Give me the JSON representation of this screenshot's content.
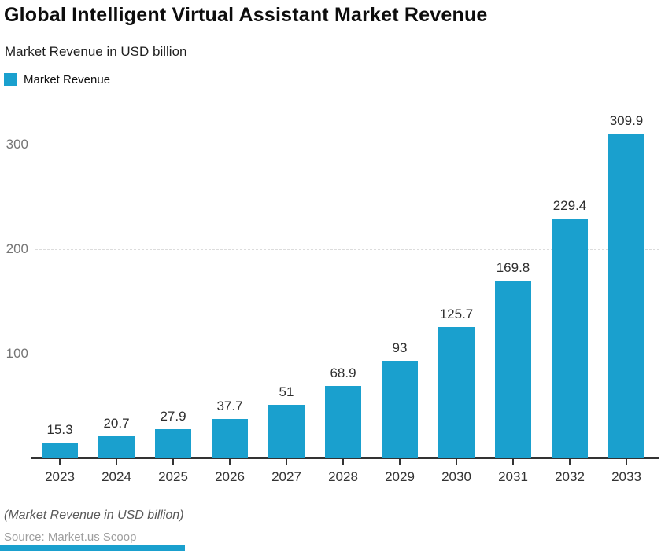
{
  "header": {
    "title": "Global Intelligent Virtual Assistant Market Revenue",
    "subtitle": "Market Revenue in USD billion"
  },
  "chart_data": {
    "type": "bar",
    "title": "Global Intelligent Virtual Assistant Market Revenue",
    "subtitle": "Market Revenue in USD billion",
    "categories": [
      "2023",
      "2024",
      "2025",
      "2026",
      "2027",
      "2028",
      "2029",
      "2030",
      "2031",
      "2032",
      "2033"
    ],
    "values": [
      15.3,
      20.7,
      27.9,
      37.7,
      51,
      68.9,
      93,
      125.7,
      169.8,
      229.4,
      309.9
    ],
    "xlabel": "",
    "ylabel": "",
    "ylim": [
      0,
      340
    ],
    "yticks": [
      100,
      200,
      300
    ],
    "grid": true,
    "value_labels": true,
    "bar_color": "#1AA0CE",
    "legend": {
      "position": "top-left",
      "entries": [
        "Market Revenue"
      ]
    }
  },
  "footer": {
    "note": "(Market Revenue in USD billion)",
    "source": "Source: Market.us Scoop"
  },
  "colors": {
    "accent": "#1AA0CE",
    "axis": "#333333",
    "grid": "#DCDCDC",
    "value_label": "#2E2E2E",
    "x_tick_label": "#333333",
    "y_tick_label": "#757575",
    "note_text": "#595959",
    "source_text": "#9E9E9E"
  }
}
